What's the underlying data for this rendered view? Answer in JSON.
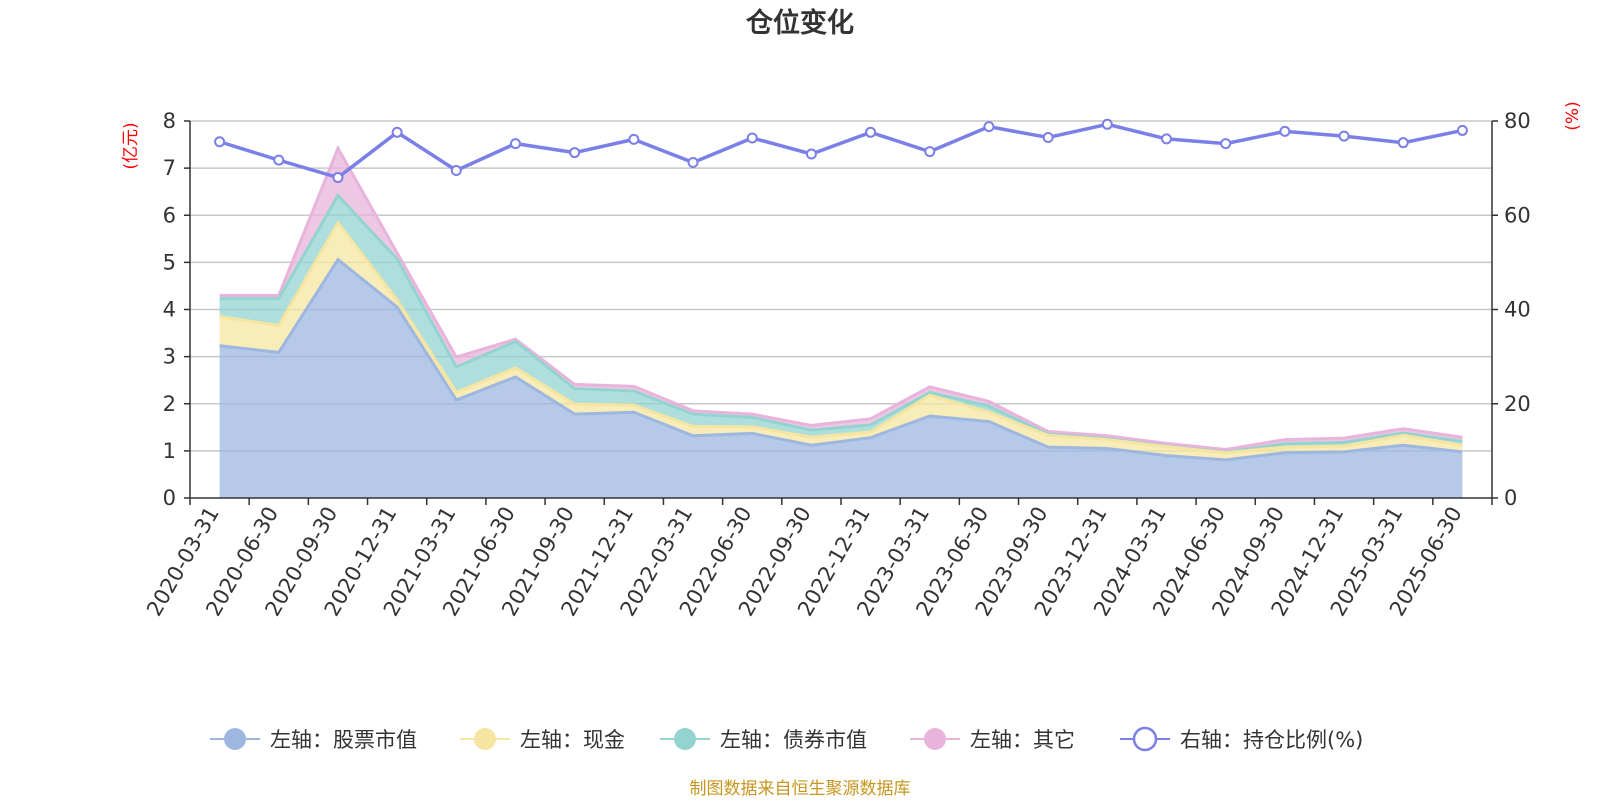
{
  "chart_data": {
    "type": "area",
    "title": "仓位变化",
    "categories": [
      "2020-03-31",
      "2020-06-30",
      "2020-09-30",
      "2020-12-31",
      "2021-03-31",
      "2021-06-30",
      "2021-09-30",
      "2021-12-31",
      "2022-03-31",
      "2022-06-30",
      "2022-09-30",
      "2022-12-31",
      "2023-03-31",
      "2023-06-30",
      "2023-09-30",
      "2023-12-31",
      "2024-03-31",
      "2024-06-30",
      "2024-09-30",
      "2024-12-31",
      "2025-03-31",
      "2025-06-30"
    ],
    "left_axis": {
      "unit": "(亿元)",
      "ylim": [
        0,
        8
      ],
      "ticks": [
        0,
        1,
        2,
        3,
        4,
        5,
        6,
        7,
        8
      ]
    },
    "right_axis": {
      "unit": "(%)",
      "ylim": [
        0,
        80
      ],
      "ticks": [
        0,
        20,
        40,
        60,
        80
      ]
    },
    "stacked_series": [
      {
        "name": "左轴：股票市值",
        "color": "#9db7e0",
        "values": [
          3.23,
          3.09,
          5.06,
          4.05,
          2.08,
          2.57,
          1.78,
          1.82,
          1.32,
          1.37,
          1.12,
          1.28,
          1.74,
          1.62,
          1.08,
          1.05,
          0.9,
          0.81,
          0.96,
          0.98,
          1.12,
          0.98
        ]
      },
      {
        "name": "左轴：现金",
        "color": "#f6e5a0",
        "values": [
          0.62,
          0.57,
          0.78,
          0.15,
          0.16,
          0.19,
          0.21,
          0.15,
          0.2,
          0.14,
          0.17,
          0.12,
          0.44,
          0.2,
          0.25,
          0.19,
          0.19,
          0.15,
          0.12,
          0.12,
          0.21,
          0.14
        ]
      },
      {
        "name": "左轴：债券市值",
        "color": "#93d4d0",
        "values": [
          0.38,
          0.57,
          0.58,
          0.87,
          0.54,
          0.56,
          0.33,
          0.3,
          0.26,
          0.2,
          0.15,
          0.15,
          0.06,
          0.13,
          0.02,
          0.02,
          0.01,
          0.01,
          0.07,
          0.08,
          0.05,
          0.08
        ]
      },
      {
        "name": "左轴：其它",
        "color": "#e8b4dc",
        "values": [
          0.07,
          0.07,
          1.0,
          0.13,
          0.21,
          0.05,
          0.09,
          0.1,
          0.07,
          0.07,
          0.1,
          0.13,
          0.12,
          0.1,
          0.06,
          0.06,
          0.06,
          0.06,
          0.09,
          0.09,
          0.09,
          0.09
        ]
      }
    ],
    "line_series": {
      "name": "右轴：持仓比例(%)",
      "color": "#7b7fe8",
      "values": [
        75.6,
        71.7,
        68.0,
        77.6,
        69.5,
        75.2,
        73.3,
        76.1,
        71.2,
        76.4,
        73.0,
        77.6,
        73.5,
        78.8,
        76.5,
        79.3,
        76.2,
        75.2,
        77.8,
        76.8,
        75.4,
        78.0
      ]
    },
    "legend_position": "bottom-center",
    "grid": true,
    "source": "制图数据来自恒生聚源数据库"
  }
}
